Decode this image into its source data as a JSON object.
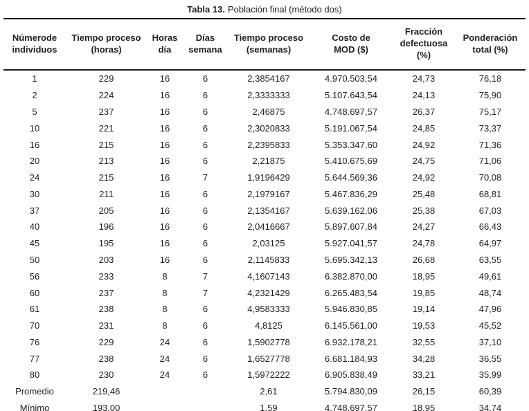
{
  "title": {
    "label": "Tabla 13.",
    "text": "Población final (método dos)"
  },
  "table": {
    "headers": [
      {
        "line1": "Númerode",
        "line2": "individuos"
      },
      {
        "line1": "Tiempo proceso",
        "line2": "(horas)"
      },
      {
        "line1": "Horas",
        "line2": "día"
      },
      {
        "line1": "Días",
        "line2": "semana"
      },
      {
        "line1": "Tiempo proceso",
        "line2": "(semanas)"
      },
      {
        "line1": "Costo de",
        "line2": "MOD ($)"
      },
      {
        "line1": "Fracción",
        "line2": "defectuosa (%)"
      },
      {
        "line1": "Ponderación",
        "line2": "total (%)"
      }
    ],
    "rows": [
      [
        "1",
        "229",
        "16",
        "6",
        "2,3854167",
        "4.970.503,54",
        "24,73",
        "76,18"
      ],
      [
        "2",
        "224",
        "16",
        "6",
        "2,3333333",
        "5.107.643,54",
        "24,13",
        "75,90"
      ],
      [
        "5",
        "237",
        "16",
        "6",
        "2,46875",
        "4.748.697,57",
        "26,37",
        "75,17"
      ],
      [
        "10",
        "221",
        "16",
        "6",
        "2,3020833",
        "5.191.067,54",
        "24,85",
        "73,37"
      ],
      [
        "16",
        "215",
        "16",
        "6",
        "2,2395833",
        "5.353.347,60",
        "24,92",
        "71,36"
      ],
      [
        "20",
        "213",
        "16",
        "6",
        "2,21875",
        "5.410.675,69",
        "24,75",
        "71,06"
      ],
      [
        "24",
        "215",
        "16",
        "7",
        "1,9196429",
        "5.644.569,36",
        "24,92",
        "70,08"
      ],
      [
        "30",
        "211",
        "16",
        "6",
        "2,1979167",
        "5.467.836,29",
        "25,48",
        "68,81"
      ],
      [
        "37",
        "205",
        "16",
        "6",
        "2,1354167",
        "5.639.162,06",
        "25,38",
        "67,03"
      ],
      [
        "40",
        "196",
        "16",
        "6",
        "2,0416667",
        "5.897.607,84",
        "24,27",
        "66,43"
      ],
      [
        "45",
        "195",
        "16",
        "6",
        "2,03125",
        "5.927.041,57",
        "24,78",
        "64,97"
      ],
      [
        "50",
        "203",
        "16",
        "6",
        "2,1145833",
        "5.695.342,13",
        "26,68",
        "63,55"
      ],
      [
        "56",
        "233",
        "8",
        "7",
        "4,1607143",
        "6.382.870,00",
        "18,95",
        "49,61"
      ],
      [
        "60",
        "237",
        "8",
        "7",
        "4,2321429",
        "6.265.483,54",
        "19,85",
        "48,74"
      ],
      [
        "61",
        "238",
        "8",
        "6",
        "4,9583333",
        "5.946.830,85",
        "19,14",
        "47,96"
      ],
      [
        "70",
        "231",
        "8",
        "6",
        "4,8125",
        "6.145.561,00",
        "19,53",
        "45,52"
      ],
      [
        "76",
        "229",
        "24",
        "6",
        "1,5902778",
        "6.932.178,21",
        "32,55",
        "37,10"
      ],
      [
        "77",
        "238",
        "24",
        "6",
        "1,6527778",
        "6.681.184,93",
        "34,28",
        "36,55"
      ],
      [
        "80",
        "230",
        "24",
        "6",
        "1,5972222",
        "6.905.838,49",
        "33,21",
        "35,99"
      ],
      [
        "Promedio",
        "219,46",
        "",
        "",
        "2,61",
        "5.794.830,09",
        "26,15",
        "60,39"
      ],
      [
        "Mínimo",
        "193,00",
        "",
        "",
        "1,59",
        "4.748.697,57",
        "18,95",
        "34,74"
      ]
    ]
  },
  "colors": {
    "text": "#212121",
    "rule": "#1c1c1c",
    "background": "#ffffff"
  }
}
